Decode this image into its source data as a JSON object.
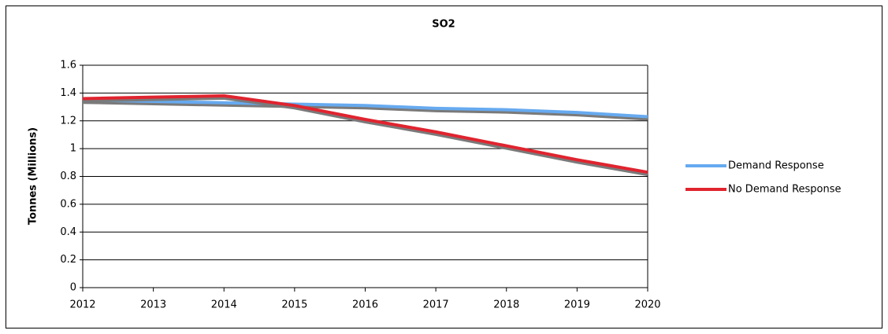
{
  "chart_data": {
    "type": "line",
    "title": "SO2",
    "y_label": "Tonnes (Millions)",
    "categories": [
      "2012",
      "2013",
      "2014",
      "2015",
      "2016",
      "2017",
      "2018",
      "2019",
      "2020"
    ],
    "series": [
      {
        "name": "Demand Response",
        "color": "#66aaf0",
        "values": [
          1.35,
          1.34,
          1.33,
          1.32,
          1.31,
          1.29,
          1.28,
          1.26,
          1.23
        ]
      },
      {
        "name": "No Demand Response",
        "color": "#e0242f",
        "values": [
          1.36,
          1.37,
          1.38,
          1.31,
          1.21,
          1.12,
          1.02,
          0.92,
          0.83
        ]
      }
    ],
    "ylim": [
      0,
      1.6
    ],
    "yticks": [
      0,
      0.2,
      0.4,
      0.6,
      0.8,
      1,
      1.2,
      1.4,
      1.6
    ],
    "grid": true,
    "legend": "right"
  }
}
